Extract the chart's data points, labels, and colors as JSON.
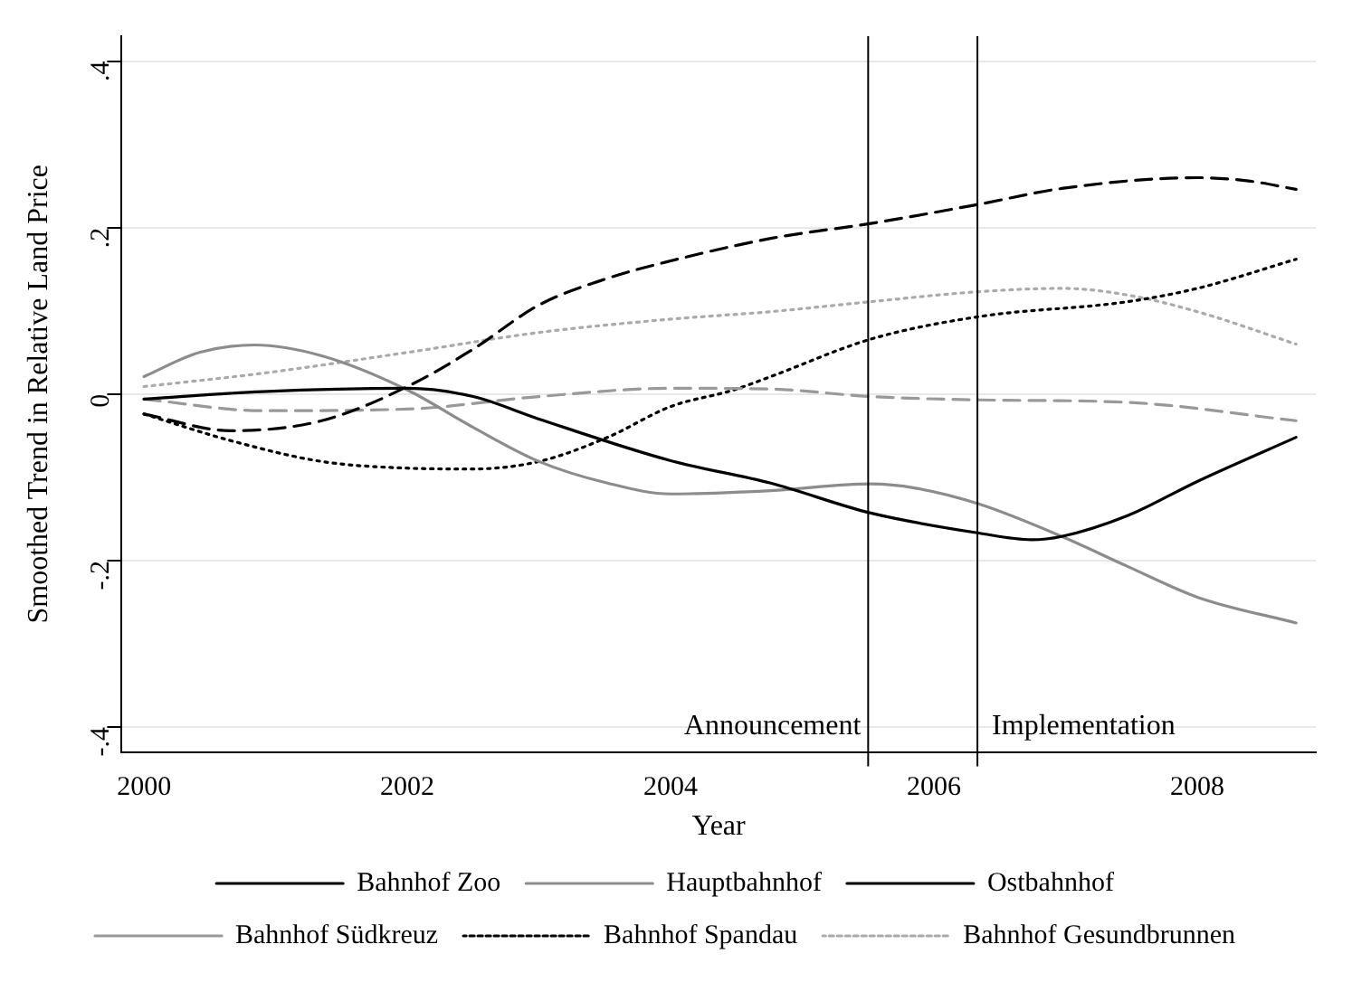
{
  "chart_data": {
    "type": "line",
    "xlabel": "Year",
    "ylabel": "Smoothed Trend in Relative Land Price",
    "xlim": [
      1999.83,
      2008.9
    ],
    "xticks": [
      2000,
      2002,
      2004,
      2006,
      2008
    ],
    "ylim": [
      -0.43,
      0.43
    ],
    "yticks": [
      {
        "value": -0.4,
        "label": "-.4"
      },
      {
        "value": -0.2,
        "label": "-.2"
      },
      0,
      {
        "value": 0.2,
        "label": ".2"
      },
      {
        "value": 0.4,
        "label": ".4"
      }
    ],
    "grid": "y",
    "legend": "bottom",
    "marker": "none",
    "ref_lines": [
      {
        "axis": "x",
        "value": 2005.5,
        "label": "Announcement",
        "color": "#000000"
      },
      {
        "axis": "x",
        "value": 2006.33,
        "label": "Implementation",
        "color": "#000000"
      }
    ],
    "series": [
      {
        "name": "Bahnhof Zoo",
        "color": "#000000",
        "line_style": "solid",
        "x": [
          2000,
          2000.9,
          2002,
          2002.5,
          2003,
          2004,
          2004.76,
          2005.52,
          2006.34,
          2006.74,
          2006.97,
          2007.47,
          2008,
          2008.75
        ],
        "values": [
          -0.006,
          0.003,
          0.007,
          -0.003,
          -0.03,
          -0.08,
          -0.107,
          -0.143,
          -0.167,
          -0.175,
          -0.171,
          -0.146,
          -0.105,
          -0.052
        ]
      },
      {
        "name": "Hauptbahnhof",
        "color": "#8c8c8c",
        "line_style": "solid",
        "x": [
          2000,
          2000.42,
          2000.84,
          2001.35,
          2002,
          2002.5,
          2003,
          2003.52,
          2004,
          2004.76,
          2005.52,
          2005.86,
          2006.34,
          2006.97,
          2007.47,
          2008,
          2008.75
        ],
        "values": [
          0.021,
          0.05,
          0.059,
          0.046,
          0.005,
          -0.04,
          -0.081,
          -0.107,
          -0.12,
          -0.116,
          -0.108,
          -0.113,
          -0.132,
          -0.171,
          -0.207,
          -0.244,
          -0.275
        ]
      },
      {
        "name": "Ostbahnhof",
        "color": "#000000",
        "line_style": "dashed",
        "x": [
          2000,
          2000.66,
          2001.35,
          2002,
          2002.5,
          2003,
          2003.52,
          2004,
          2004.76,
          2005.52,
          2006.34,
          2006.97,
          2008,
          2008.39,
          2008.75
        ],
        "values": [
          -0.024,
          -0.044,
          -0.032,
          0.009,
          0.054,
          0.107,
          0.139,
          0.16,
          0.187,
          0.205,
          0.228,
          0.247,
          0.26,
          0.256,
          0.246
        ]
      },
      {
        "name": "Bahnhof Südkreuz",
        "color": "#999999",
        "line_style": "dashed",
        "x": [
          2000,
          2000.9,
          2002,
          2003,
          2004,
          2004.76,
          2005.52,
          2006.34,
          2007.47,
          2008.75
        ],
        "values": [
          -0.006,
          -0.02,
          -0.018,
          -0.003,
          0.007,
          0.006,
          -0.003,
          -0.007,
          -0.01,
          -0.032
        ]
      },
      {
        "name": "Bahnhof Spandau",
        "color": "#000000",
        "line_style": "dotted",
        "x": [
          2000,
          2000.66,
          2001.35,
          2002,
          2002.5,
          2003,
          2003.52,
          2004,
          2004.48,
          2004.76,
          2005.52,
          2006.34,
          2007.47,
          2008,
          2008.75
        ],
        "values": [
          -0.024,
          -0.056,
          -0.081,
          -0.089,
          -0.09,
          -0.081,
          -0.052,
          -0.015,
          0.005,
          0.021,
          0.066,
          0.093,
          0.111,
          0.127,
          0.162
        ]
      },
      {
        "name": "Bahnhof Gesundbrunnen",
        "color": "#aaaaaa",
        "line_style": "dotted",
        "x": [
          2000,
          2000.9,
          2002,
          2003,
          2004,
          2004.76,
          2005.52,
          2006.34,
          2006.97,
          2007.47,
          2008,
          2008.75
        ],
        "values": [
          0.009,
          0.025,
          0.05,
          0.074,
          0.09,
          0.099,
          0.111,
          0.123,
          0.127,
          0.119,
          0.099,
          0.06
        ]
      }
    ]
  }
}
